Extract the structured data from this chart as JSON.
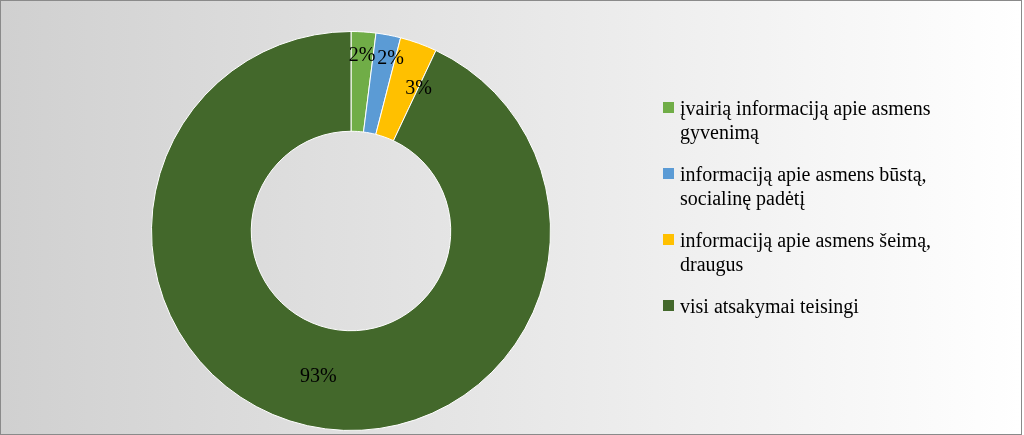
{
  "chart_data": {
    "type": "donut",
    "categories": [
      "įvairią informaciją apie asmens gyvenimą",
      "informaciją apie asmens būstą, socialinę padėtį",
      "informaciją apie asmens šeimą, draugus",
      "visi atsakymai teisingi"
    ],
    "values": [
      2,
      2,
      3,
      93
    ],
    "colors": [
      "#70ad47",
      "#5b9bd5",
      "#ffc000",
      "#43682b"
    ],
    "value_labels": [
      "2%",
      "2%",
      "3%",
      "93%"
    ],
    "legend": "right"
  }
}
